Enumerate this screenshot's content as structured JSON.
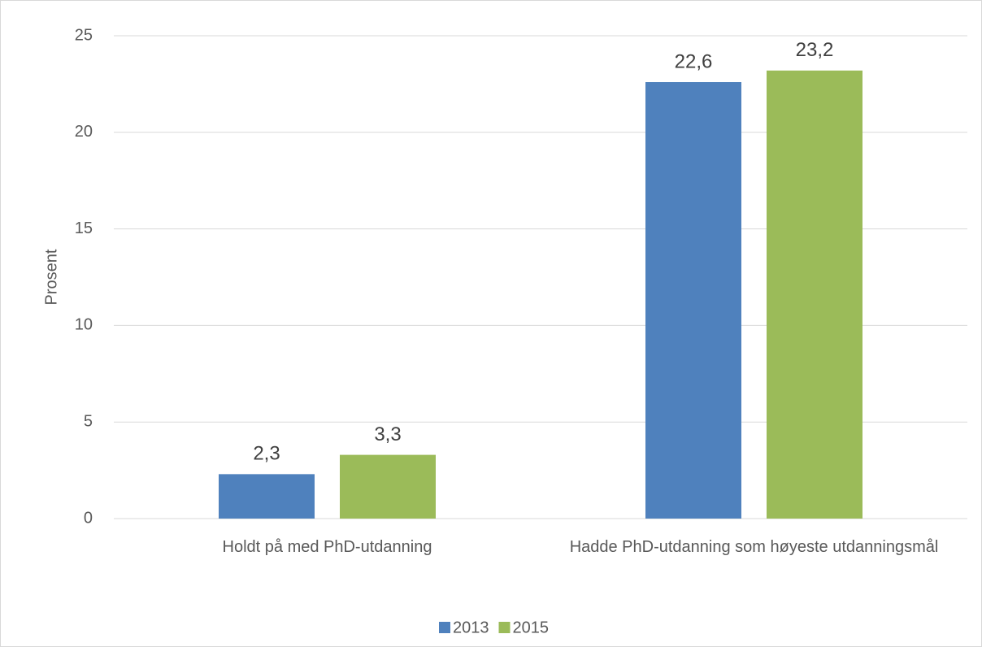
{
  "chart_data": {
    "type": "bar",
    "categories": [
      "Holdt på med PhD-utdanning",
      "Hadde PhD-utdanning som høyeste utdanningsmål"
    ],
    "series": [
      {
        "name": "2013",
        "color": "#4f81bd",
        "values": [
          2.3,
          22.6
        ],
        "value_labels": [
          "2,3",
          "22,6"
        ]
      },
      {
        "name": "2015",
        "color": "#9bbb59",
        "values": [
          3.3,
          23.2
        ],
        "value_labels": [
          "3,3",
          "23,2"
        ]
      }
    ],
    "y_label": "Prosent",
    "ylim": [
      0,
      25
    ],
    "yticks": [
      0,
      5,
      10,
      15,
      20,
      25
    ],
    "grid": true,
    "legend": "bottom"
  }
}
